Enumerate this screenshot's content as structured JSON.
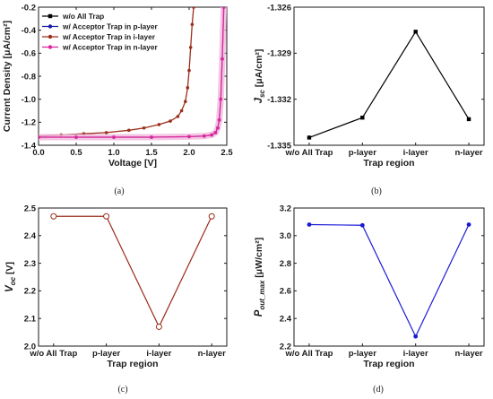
{
  "captions": [
    "(a)",
    "(b)",
    "(c)",
    "(d)"
  ],
  "chart_data": [
    {
      "type": "line",
      "panel": "a",
      "xlabel": "Voltage [V]",
      "ylabel": "Current Density [μA/cm²]",
      "xlim": [
        0.0,
        2.5
      ],
      "ylim": [
        -1.4,
        -0.2
      ],
      "xticks": [
        "0.0",
        "0.5",
        "1.0",
        "1.5",
        "2.0",
        "2.5"
      ],
      "yticks": [
        "-0.2",
        "-0.4",
        "-0.6",
        "-0.8",
        "-1.0",
        "-1.2",
        "-1.4"
      ],
      "legend_position": "top-left",
      "series": [
        {
          "name": "w/o All Trap",
          "color": "#000000",
          "marker": "square",
          "x": [
            0.0,
            0.5,
            1.0,
            1.5,
            2.0,
            2.2,
            2.3,
            2.35,
            2.38,
            2.4,
            2.42,
            2.44,
            2.46
          ],
          "y": [
            -1.33,
            -1.33,
            -1.33,
            -1.33,
            -1.325,
            -1.32,
            -1.31,
            -1.29,
            -1.25,
            -1.18,
            -1.0,
            -0.65,
            -0.2
          ]
        },
        {
          "name": "w/ Acceptor Trap in p-layer",
          "color": "#1a1aa6",
          "marker": "circle",
          "x": [
            0.0,
            0.5,
            1.0,
            1.5,
            2.0,
            2.2,
            2.3,
            2.35,
            2.38,
            2.4,
            2.42,
            2.44,
            2.46
          ],
          "y": [
            -1.33,
            -1.33,
            -1.33,
            -1.33,
            -1.325,
            -1.32,
            -1.31,
            -1.29,
            -1.25,
            -1.18,
            -1.0,
            -0.65,
            -0.2
          ]
        },
        {
          "name": "w/ Acceptor Trap in i-layer",
          "color": "#9b2d1a",
          "marker": "circle",
          "x": [
            0.0,
            0.3,
            0.6,
            0.9,
            1.2,
            1.4,
            1.6,
            1.75,
            1.85,
            1.9,
            1.95,
            1.98,
            2.0,
            2.02,
            2.04,
            2.06
          ],
          "y": [
            -1.32,
            -1.31,
            -1.3,
            -1.29,
            -1.27,
            -1.25,
            -1.22,
            -1.19,
            -1.15,
            -1.1,
            -1.02,
            -0.9,
            -0.75,
            -0.55,
            -0.35,
            -0.2
          ]
        },
        {
          "name": "w/ Acceptor Trap in n-layer",
          "color": "#d9269c",
          "marker": "circle",
          "x": [
            0.0,
            0.5,
            1.0,
            1.5,
            2.0,
            2.2,
            2.3,
            2.35,
            2.38,
            2.4,
            2.42,
            2.44,
            2.46
          ],
          "y": [
            -1.33,
            -1.33,
            -1.33,
            -1.33,
            -1.325,
            -1.32,
            -1.31,
            -1.29,
            -1.25,
            -1.18,
            -1.0,
            -0.65,
            -0.2
          ]
        }
      ]
    },
    {
      "type": "line",
      "panel": "b",
      "xlabel": "Trap region",
      "ylabel": "J_sc [μA/cm²]",
      "categories": [
        "w/o All Trap",
        "p-layer",
        "i-layer",
        "n-layer"
      ],
      "ylim": [
        -1.335,
        -1.326
      ],
      "yticks": [
        "-1.326",
        "-1.329",
        "-1.332",
        "-1.335"
      ],
      "series": [
        {
          "color": "#000000",
          "marker": "square",
          "values": [
            -1.3345,
            -1.3332,
            -1.3276,
            -1.3333
          ]
        }
      ]
    },
    {
      "type": "line",
      "panel": "c",
      "xlabel": "Trap region",
      "ylabel": "V_oc [V]",
      "categories": [
        "w/o All Trap",
        "p-layer",
        "i-layer",
        "n-layer"
      ],
      "ylim": [
        2.0,
        2.5
      ],
      "yticks": [
        "2.5",
        "2.4",
        "2.3",
        "2.2",
        "2.1",
        "2.0"
      ],
      "series": [
        {
          "color": "#9b2d1a",
          "marker": "open-circle",
          "values": [
            2.47,
            2.47,
            2.07,
            2.47
          ]
        }
      ]
    },
    {
      "type": "line",
      "panel": "d",
      "xlabel": "Trap region",
      "ylabel": "P_out_max [μW/cm²]",
      "categories": [
        "w/o All Trap",
        "p-layer",
        "i-layer",
        "n-layer"
      ],
      "ylim": [
        2.2,
        3.2
      ],
      "yticks": [
        "3.2",
        "3.0",
        "2.8",
        "2.6",
        "2.4",
        "2.2"
      ],
      "series": [
        {
          "color": "#1a1ad6",
          "marker": "circle",
          "values": [
            3.08,
            3.075,
            2.27,
            3.08
          ]
        }
      ]
    }
  ]
}
